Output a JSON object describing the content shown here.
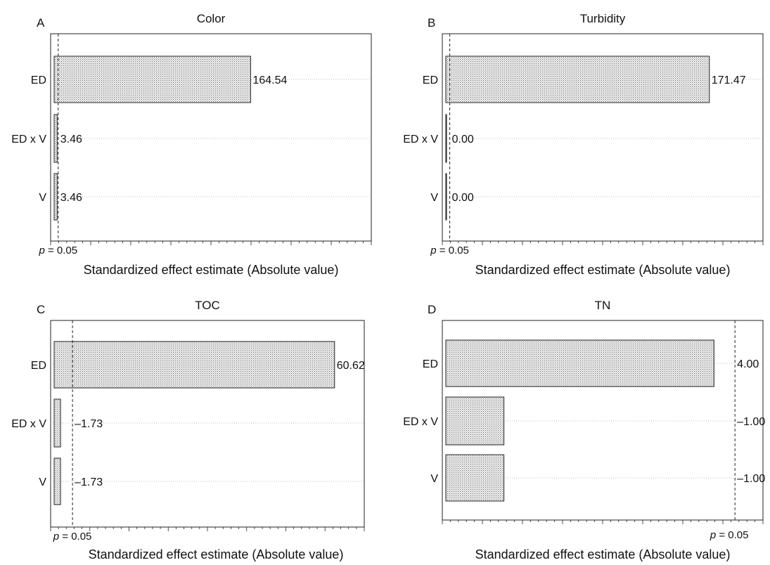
{
  "chart_data": [
    {
      "panel_label": "A",
      "type": "bar",
      "orientation": "horizontal",
      "title": "Color",
      "categories": [
        "ED",
        "ED x V",
        "V"
      ],
      "values": [
        164.54,
        3.46,
        3.46
      ],
      "value_labels": [
        "164.54",
        "3.46",
        "3.46"
      ],
      "xlim": [
        -2,
        265
      ],
      "threshold_value": 4.3,
      "threshold_label": "p = 0.05",
      "xlabel": "Standardized effect estimate (Absolute value)",
      "grid": "dotted horizontal"
    },
    {
      "panel_label": "B",
      "type": "bar",
      "orientation": "horizontal",
      "title": "Turbidity",
      "categories": [
        "ED",
        "ED x V",
        "V"
      ],
      "values": [
        171.47,
        0.0,
        0.0
      ],
      "value_labels": [
        "171.47",
        "0.00",
        "0.00"
      ],
      "xlim": [
        -0.5,
        206
      ],
      "threshold_value": 4.3,
      "threshold_label": "p = 0.05",
      "xlabel": "Standardized effect estimate (Absolute value)",
      "grid": "dotted horizontal"
    },
    {
      "panel_label": "C",
      "type": "bar",
      "orientation": "horizontal",
      "title": "TOC",
      "categories": [
        "ED",
        "ED x V",
        "V"
      ],
      "values": [
        60.62,
        1.73,
        1.73
      ],
      "value_labels": [
        "60.62",
        "–1.73",
        "–1.73"
      ],
      "xlim": [
        -0.4,
        67
      ],
      "threshold_value": 4.3,
      "threshold_label": "p = 0.05",
      "xlabel": "Standardized effect estimate (Absolute value)",
      "grid": "dotted horizontal"
    },
    {
      "panel_label": "D",
      "type": "bar",
      "orientation": "horizontal",
      "title": "TN",
      "categories": [
        "ED",
        "ED x V",
        "V"
      ],
      "values": [
        4.0,
        1.0,
        1.0
      ],
      "value_labels": [
        "4.00",
        "–1.00",
        "–1.00"
      ],
      "xlim": [
        0.12,
        4.7
      ],
      "threshold_value": 4.3,
      "threshold_label": "p = 0.05",
      "xlabel": "Standardized effect estimate (Absolute value)",
      "grid": "dotted horizontal"
    }
  ]
}
